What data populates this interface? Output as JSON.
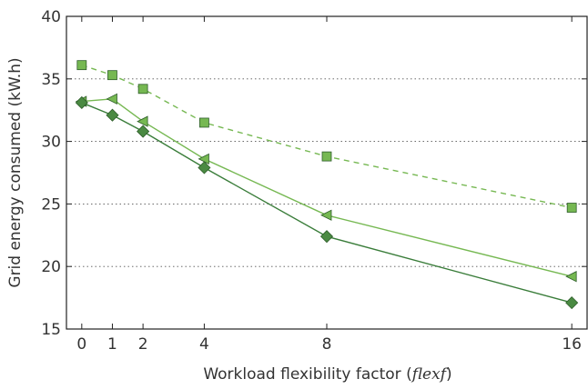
{
  "chart_data": {
    "type": "line",
    "xlabel": "Workload flexibility factor (",
    "xlabel_var": "flexf",
    "xlabel_close": ")",
    "ylabel": "Grid energy consumed (kW.h)",
    "x_ticks": [
      "0",
      "1",
      "2",
      "4",
      "8",
      "16"
    ],
    "y_ticks": [
      "15",
      "20",
      "25",
      "30",
      "35",
      "40"
    ],
    "ylim": [
      15,
      40
    ],
    "grid": "horizontal dotted",
    "legend": "none",
    "series": [
      {
        "marker": "square",
        "line_style": "dashed",
        "color": "#76b852",
        "marker_fill": "#76b852",
        "x": [
          0,
          1,
          2,
          4,
          8,
          16
        ],
        "values": [
          36.1,
          35.3,
          34.2,
          31.5,
          28.8,
          24.7
        ]
      },
      {
        "marker": "triangle-left",
        "line_style": "solid",
        "color": "#76b852",
        "marker_fill": "#76b852",
        "x": [
          0,
          1,
          2,
          4,
          8,
          16
        ],
        "values": [
          33.2,
          33.4,
          31.6,
          28.6,
          24.1,
          19.2
        ]
      },
      {
        "marker": "diamond",
        "line_style": "solid",
        "color": "#3a7d3a",
        "marker_fill": "#4a8a42",
        "x": [
          0,
          1,
          2,
          4,
          8,
          16
        ],
        "values": [
          33.1,
          32.1,
          30.8,
          27.9,
          22.4,
          17.1
        ]
      }
    ]
  }
}
